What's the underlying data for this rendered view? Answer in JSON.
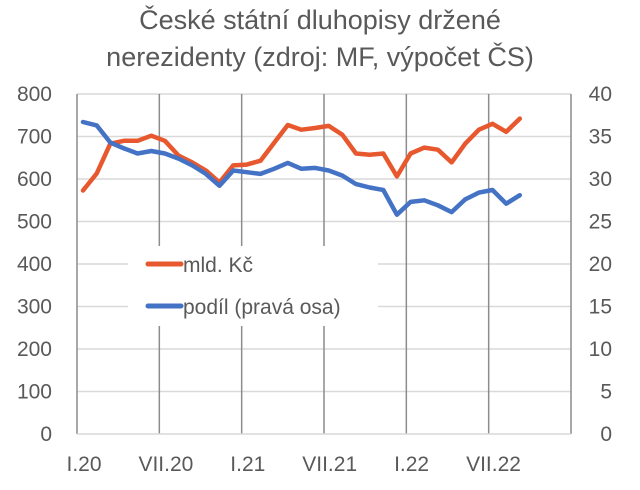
{
  "title": {
    "line1": "České státní dluhopisy držené",
    "line2": "nerezidenty (zdroj: MF, výpočet ČS)"
  },
  "colors": {
    "orange": "#E8582E",
    "blue": "#4472C4",
    "grid": "#D9D9D9",
    "axis": "#8C8C8C"
  },
  "chart_data": {
    "type": "line",
    "title": "České státní dluhopisy držené nerezidenty (zdroj: MF, výpočet ČS)",
    "xlabel": "",
    "ylabel": "mld. Kč",
    "y2label": "podíl (pravá osa)",
    "ylim": [
      0,
      800
    ],
    "y2lim": [
      0,
      40
    ],
    "yticks": [
      "0",
      "100",
      "200",
      "300",
      "400",
      "500",
      "600",
      "700",
      "800"
    ],
    "y2ticks": [
      "0",
      "5",
      "10",
      "15",
      "20",
      "25",
      "30",
      "35",
      "40"
    ],
    "xtick_labels": [
      "I.20",
      "VII.20",
      "I.21",
      "VII.21",
      "I.22",
      "VII.22"
    ],
    "grid": true,
    "legend_position": "inside-left",
    "x": [
      "I.20",
      "II.20",
      "III.20",
      "IV.20",
      "V.20",
      "VI.20",
      "VII.20",
      "VIII.20",
      "IX.20",
      "X.20",
      "XI.20",
      "XII.20",
      "I.21",
      "II.21",
      "III.21",
      "IV.21",
      "V.21",
      "VI.21",
      "VII.21",
      "VIII.21",
      "IX.21",
      "X.21",
      "XI.21",
      "XII.21",
      "I.22",
      "II.22",
      "III.22",
      "IV.22",
      "V.22",
      "VI.22",
      "VII.22",
      "VIII.22",
      "IX.22"
    ],
    "series": [
      {
        "name": "mld. Kč",
        "axis": "left",
        "color": "#E8582E",
        "values": [
          573,
          613,
          683,
          690,
          690,
          702,
          690,
          655,
          639,
          620,
          592,
          632,
          634,
          643,
          685,
          727,
          716,
          720,
          725,
          704,
          660,
          657,
          660,
          606,
          660,
          674,
          669,
          639,
          683,
          716,
          730,
          711,
          742
        ]
      },
      {
        "name": "podíl (pravá osa)",
        "axis": "right",
        "color": "#4472C4",
        "values": [
          36.7,
          36.3,
          34.3,
          33.6,
          33.0,
          33.3,
          33.0,
          32.4,
          31.6,
          30.6,
          29.2,
          31.0,
          30.8,
          30.6,
          31.2,
          31.9,
          31.2,
          31.3,
          31.0,
          30.4,
          29.4,
          29.0,
          28.7,
          25.8,
          27.3,
          27.5,
          26.9,
          26.1,
          27.6,
          28.4,
          28.7,
          27.1,
          28.1
        ]
      }
    ]
  },
  "legend": {
    "items": [
      {
        "label": "mld. Kč",
        "color": "#E8582E"
      },
      {
        "label": "podíl (pravá osa)",
        "color": "#4472C4"
      }
    ]
  }
}
